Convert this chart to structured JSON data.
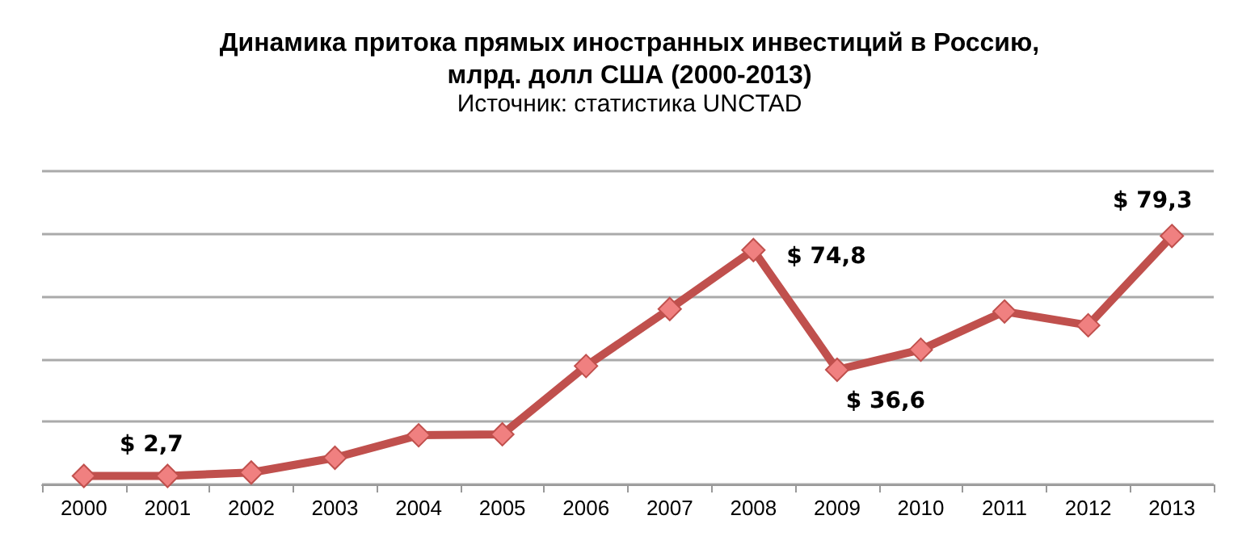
{
  "chart_data": {
    "type": "line",
    "title": "Динамика притока прямых иностранных инвестиций в Россию,\nмлрд. долл США (2000-2013)",
    "subtitle": "Источник: статистика UNCTAD",
    "categories": [
      "2000",
      "2001",
      "2002",
      "2003",
      "2004",
      "2005",
      "2006",
      "2007",
      "2008",
      "2009",
      "2010",
      "2011",
      "2012",
      "2013"
    ],
    "series": [
      {
        "color": "#c0504d",
        "values": [
          2.7,
          2.7,
          3.8,
          8.5,
          15.7,
          16.0,
          37.8,
          56.0,
          74.8,
          36.6,
          43.0,
          55.2,
          50.8,
          79.3
        ],
        "value_labels": [
          null,
          "$ 2,7",
          null,
          null,
          null,
          null,
          null,
          null,
          "$ 74,8",
          "$ 36,6",
          null,
          null,
          null,
          "$ 79,3"
        ]
      }
    ],
    "ylim": [
      0,
      100
    ],
    "yticks": [
      {
        "value": 0,
        "label": null
      },
      {
        "value": 20,
        "label": null
      },
      {
        "value": 40,
        "label": null
      },
      {
        "value": 60,
        "label": null
      },
      {
        "value": 80,
        "label": null
      },
      {
        "value": 100,
        "label": null
      }
    ],
    "tick_labels": "x",
    "grid": "y",
    "marker": "diamond",
    "line_style": "solid"
  }
}
